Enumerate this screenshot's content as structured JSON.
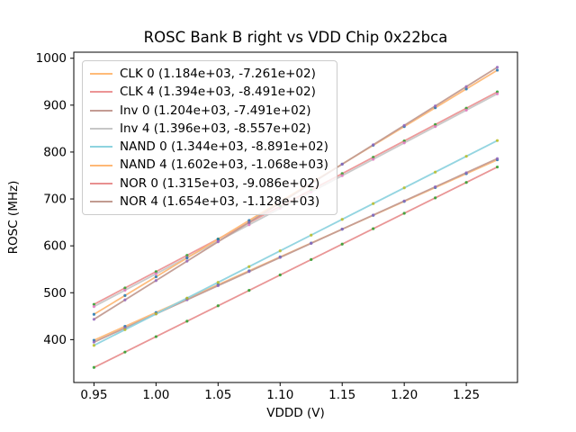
{
  "chart_data": {
    "type": "scatter",
    "title": "ROSC Bank B right vs VDD Chip 0x22bca",
    "xlabel": "VDDD (V)",
    "ylabel": "ROSC (MHz)",
    "xlim": [
      0.93375,
      1.29125
    ],
    "ylim": [
      308.6,
      1012.9
    ],
    "x_ticks": [
      0.95,
      1.0,
      1.05,
      1.1,
      1.15,
      1.2,
      1.25
    ],
    "x_tick_labels": [
      "0.95",
      "1.00",
      "1.05",
      "1.10",
      "1.15",
      "1.20",
      "1.25"
    ],
    "y_ticks": [
      400,
      500,
      600,
      700,
      800,
      900,
      1000
    ],
    "y_tick_labels": [
      "400",
      "500",
      "600",
      "700",
      "800",
      "900",
      "1000"
    ],
    "grid": false,
    "legend_position": "upper left",
    "x": [
      0.95,
      0.975,
      1.0,
      1.025,
      1.05,
      1.075,
      1.1,
      1.125,
      1.15,
      1.175,
      1.2,
      1.225,
      1.25,
      1.275
    ],
    "series": [
      {
        "name": "CLK 0",
        "legend_label": "CLK 0 (1.184e+03, -7.261e+02)",
        "fit_slope": 1184,
        "fit_intercept": -726.1,
        "line_color": "#ffbb78",
        "dot_color": "#1f77b4",
        "y": [
          398.7,
          428.3,
          457.9,
          487.5,
          517.1,
          546.7,
          576.3,
          605.9,
          635.5,
          665.1,
          694.7,
          724.3,
          753.9,
          783.5
        ]
      },
      {
        "name": "CLK 4",
        "legend_label": "CLK 4 (1.394e+03, -8.491e+02)",
        "fit_slope": 1394,
        "fit_intercept": -849.1,
        "line_color": "#ec9495",
        "dot_color": "#2ca02c",
        "y": [
          475.2,
          510.1,
          544.9,
          579.8,
          614.6,
          649.5,
          684.3,
          719.2,
          754.0,
          788.9,
          823.7,
          858.6,
          893.4,
          928.3
        ]
      },
      {
        "name": "Inv 0",
        "legend_label": "Inv 0 (1.204e+03, -7.491e+02)",
        "fit_slope": 1204,
        "fit_intercept": -749.1,
        "line_color": "#c49c94",
        "dot_color": "#9467bd",
        "y": [
          394.7,
          424.8,
          454.9,
          485.0,
          515.1,
          545.2,
          575.3,
          605.4,
          635.5,
          665.6,
          695.7,
          725.8,
          755.9,
          786.0
        ]
      },
      {
        "name": "Inv 4",
        "legend_label": "Inv 4 (1.396e+03, -8.557e+02)",
        "fit_slope": 1396,
        "fit_intercept": -855.7,
        "line_color": "#c7c7c7",
        "dot_color": "#e377c2",
        "y": [
          470.5,
          505.4,
          540.3,
          575.2,
          610.1,
          645.0,
          679.9,
          714.8,
          749.7,
          784.6,
          819.5,
          854.4,
          889.3,
          924.2
        ]
      },
      {
        "name": "NAND 0",
        "legend_label": "NAND 0 (1.344e+03, -8.891e+02)",
        "fit_slope": 1344,
        "fit_intercept": -889.1,
        "line_color": "#8ed3df",
        "dot_color": "#bcbd22",
        "y": [
          387.7,
          421.3,
          454.9,
          488.5,
          522.1,
          555.7,
          589.3,
          622.9,
          656.5,
          690.1,
          723.7,
          757.3,
          790.9,
          824.5
        ]
      },
      {
        "name": "NAND 4",
        "legend_label": "NAND 4 (1.602e+03, -1.068e+03)",
        "fit_slope": 1602,
        "fit_intercept": -1068,
        "line_color": "#feb876",
        "dot_color": "#1f77b4",
        "y": [
          453.9,
          494.0,
          534.0,
          574.1,
          614.1,
          654.2,
          694.2,
          734.3,
          774.3,
          814.4,
          854.4,
          894.5,
          934.5,
          974.6
        ]
      },
      {
        "name": "NOR 0",
        "legend_label": "NOR 0 (1.315e+03, -9.086e+02)",
        "fit_slope": 1315,
        "fit_intercept": -908.6,
        "line_color": "#e89090",
        "dot_color": "#2ca02c",
        "y": [
          340.7,
          373.5,
          406.4,
          439.3,
          472.2,
          505.0,
          537.9,
          570.8,
          603.7,
          636.6,
          669.4,
          702.3,
          735.2,
          768.1
        ]
      },
      {
        "name": "NOR 4",
        "legend_label": "NOR 4 (1.654e+03, -1.128e+03)",
        "fit_slope": 1654,
        "fit_intercept": -1128,
        "line_color": "#c29b91",
        "dot_color": "#9467bd",
        "y": [
          443.3,
          484.7,
          526.0,
          567.4,
          608.7,
          650.1,
          691.4,
          732.8,
          774.1,
          815.5,
          856.8,
          898.2,
          939.5,
          980.9
        ]
      }
    ],
    "style": {
      "spine_color": "#000000",
      "background": "#ffffff",
      "legend_border_color": "#cccccc",
      "line_width": 1.8,
      "dot_radius": 1.6
    }
  }
}
